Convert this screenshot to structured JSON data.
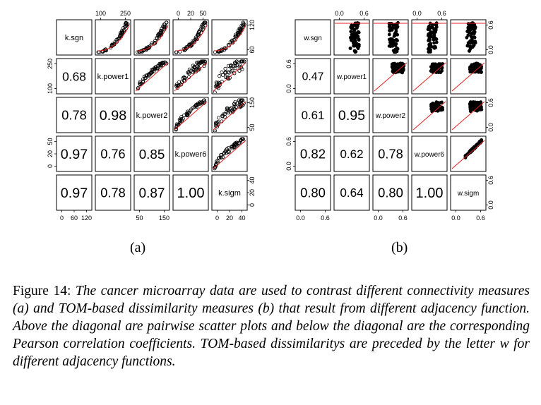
{
  "chart_data": [
    {
      "type": "scatter-matrix",
      "panel": "(a)",
      "variables": [
        "k.sgn",
        "k.power1",
        "k.power2",
        "k.power6",
        "k.sigm"
      ],
      "correlations": [
        {
          "row": 1,
          "col": 0,
          "value": "0.68"
        },
        {
          "row": 2,
          "col": 0,
          "value": "0.78"
        },
        {
          "row": 2,
          "col": 1,
          "value": "0.98"
        },
        {
          "row": 3,
          "col": 0,
          "value": "0.97"
        },
        {
          "row": 3,
          "col": 1,
          "value": "0.76"
        },
        {
          "row": 3,
          "col": 2,
          "value": "0.85"
        },
        {
          "row": 4,
          "col": 0,
          "value": "0.97"
        },
        {
          "row": 4,
          "col": 1,
          "value": "0.78"
        },
        {
          "row": 4,
          "col": 2,
          "value": "0.87"
        },
        {
          "row": 4,
          "col": 3,
          "value": "1.00"
        }
      ],
      "axis_ticks": [
        {
          "side": "top",
          "index": 1,
          "labels": [
            "100",
            "250"
          ]
        },
        {
          "side": "top",
          "index": 3,
          "labels": [
            "0",
            "20",
            "50"
          ]
        },
        {
          "side": "left",
          "index": 1,
          "labels": [
            "100",
            "250"
          ]
        },
        {
          "side": "left",
          "index": 3,
          "labels": [
            "0",
            "20",
            "50"
          ]
        },
        {
          "side": "right",
          "index": 0,
          "labels": [
            "60",
            "120"
          ]
        },
        {
          "side": "right",
          "index": 2,
          "labels": [
            "50",
            "150"
          ]
        },
        {
          "side": "right",
          "index": 4,
          "labels": [
            "0",
            "20",
            "40"
          ]
        },
        {
          "side": "bottom",
          "index": 0,
          "labels": [
            "0",
            "60",
            "120"
          ]
        },
        {
          "side": "bottom",
          "index": 2,
          "labels": [
            "50",
            "150"
          ]
        },
        {
          "side": "bottom",
          "index": 4,
          "labels": [
            "0",
            "20",
            "40"
          ]
        }
      ]
    },
    {
      "type": "scatter-matrix",
      "panel": "(b)",
      "variables": [
        "w.sgn",
        "w.power1",
        "w.power2",
        "w.power6",
        "w.sigm"
      ],
      "correlations": [
        {
          "row": 1,
          "col": 0,
          "value": "0.47"
        },
        {
          "row": 2,
          "col": 0,
          "value": "0.61"
        },
        {
          "row": 2,
          "col": 1,
          "value": "0.95"
        },
        {
          "row": 3,
          "col": 0,
          "value": "0.82"
        },
        {
          "row": 3,
          "col": 1,
          "value": "0.62"
        },
        {
          "row": 3,
          "col": 2,
          "value": "0.78"
        },
        {
          "row": 4,
          "col": 0,
          "value": "0.80"
        },
        {
          "row": 4,
          "col": 1,
          "value": "0.64"
        },
        {
          "row": 4,
          "col": 2,
          "value": "0.80"
        },
        {
          "row": 4,
          "col": 3,
          "value": "1.00"
        }
      ],
      "axis_ticks": [
        {
          "side": "top",
          "index": 1,
          "labels": [
            "0.0",
            "0.6"
          ]
        },
        {
          "side": "top",
          "index": 3,
          "labels": [
            "0.0",
            "0.6"
          ]
        },
        {
          "side": "left",
          "index": 1,
          "labels": [
            "0.0",
            "0.6"
          ]
        },
        {
          "side": "left",
          "index": 3,
          "labels": [
            "0.0",
            "0.6"
          ]
        },
        {
          "side": "right",
          "index": 0,
          "labels": [
            "0.0",
            "0.6"
          ]
        },
        {
          "side": "right",
          "index": 2,
          "labels": [
            "0.0",
            "0.6"
          ]
        },
        {
          "side": "right",
          "index": 4,
          "labels": [
            "0.0",
            "0.6"
          ]
        },
        {
          "side": "bottom",
          "index": 0,
          "labels": [
            "0.0",
            "0.6"
          ]
        },
        {
          "side": "bottom",
          "index": 2,
          "labels": [
            "0.0",
            "0.6"
          ]
        },
        {
          "side": "bottom",
          "index": 4,
          "labels": [
            "0.0",
            "0.6"
          ]
        }
      ]
    }
  ],
  "subcaptions": {
    "a": "(a)",
    "b": "(b)"
  },
  "caption": {
    "lead": "Figure 14: ",
    "text": "The cancer microarray data are used to contrast different connectivity measures (a) and TOM-based dissimilarity measures (b) that result from different adjacency function. Above the diagonal are pairwise scatter plots and below the diagonal are the corresponding Pearson correlation coefficients. TOM-based dissimilaritys are preceded by the letter w for different adjacency functions."
  },
  "colors": {
    "points": "#000000",
    "fit_line": "#e02020"
  }
}
